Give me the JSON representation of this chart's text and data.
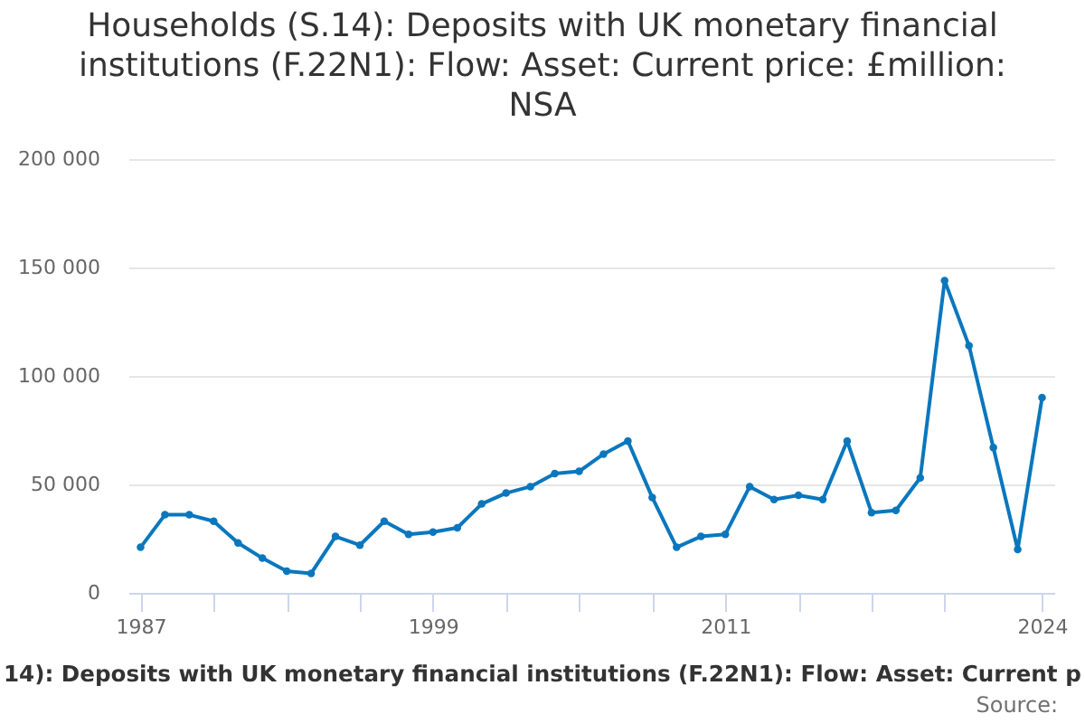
{
  "chart_data": {
    "type": "line",
    "title": "Households (S.14): Deposits with UK monetary financial institutions (F.22N1): Flow: Asset: Current price: £million: NSA",
    "x": [
      1987,
      1988,
      1989,
      1990,
      1991,
      1992,
      1993,
      1994,
      1995,
      1996,
      1997,
      1998,
      1999,
      2000,
      2001,
      2002,
      2003,
      2004,
      2005,
      2006,
      2007,
      2008,
      2009,
      2010,
      2011,
      2012,
      2013,
      2014,
      2015,
      2016,
      2017,
      2018,
      2019,
      2020,
      2021,
      2022,
      2023,
      2024
    ],
    "series": [
      {
        "color": "#0a77bd",
        "values": [
          21000,
          36000,
          36000,
          33000,
          23000,
          16000,
          10000,
          9000,
          26000,
          22000,
          33000,
          27000,
          28000,
          30000,
          41000,
          46000,
          49000,
          55000,
          56000,
          64000,
          70000,
          44000,
          21000,
          26000,
          27000,
          49000,
          43000,
          45000,
          43000,
          70000,
          37000,
          38000,
          53000,
          144000,
          114000,
          67000,
          20000,
          90000
        ]
      }
    ],
    "xlim": [
      1986.5,
      2024.5
    ],
    "xticks": [
      1987,
      {
        "value": 1990,
        "label": null
      },
      {
        "value": 1993,
        "label": null
      },
      {
        "value": 1996,
        "label": null
      },
      1999,
      {
        "value": 2002,
        "label": null
      },
      {
        "value": 2005,
        "label": null
      },
      {
        "value": 2008,
        "label": null
      },
      2011,
      {
        "value": 2014,
        "label": null
      },
      {
        "value": 2017,
        "label": null
      },
      {
        "value": 2020,
        "label": null
      },
      2024
    ],
    "ylim": [
      0,
      200000
    ],
    "yticks": [
      0,
      {
        "value": 50000,
        "label": "50 000"
      },
      {
        "value": 100000,
        "label": "100 000"
      },
      {
        "value": 150000,
        "label": "150 000"
      },
      {
        "value": 200000,
        "label": "200 000"
      }
    ],
    "grid": "y",
    "marker": "circle",
    "line_style": "solid",
    "annotations": [
      "14): Deposits with UK monetary financial institutions (F.22N1): Flow: Asset: Current p",
      "Source:"
    ]
  }
}
